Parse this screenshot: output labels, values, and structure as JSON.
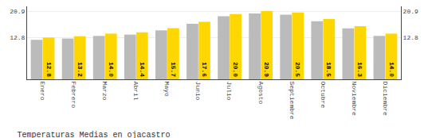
{
  "chart_data": {
    "type": "bar",
    "title": "Temperaturas Medias en ojacastro",
    "categories": [
      "Enero",
      "Febrero",
      "Marzo",
      "Abril",
      "Mayo",
      "Junio",
      "Julio",
      "Agosto",
      "Septiembre",
      "Octubre",
      "Noviembre",
      "Diciembre"
    ],
    "series": [
      {
        "color": "#BBBBBB",
        "values": [
          12.1,
          12.5,
          13.3,
          13.7,
          15.0,
          17.0,
          19.3,
          20.2,
          19.8,
          17.8,
          15.6,
          13.3
        ]
      },
      {
        "color": "#FFD700",
        "values": [
          12.8,
          13.2,
          14.0,
          14.4,
          15.7,
          17.6,
          20.0,
          20.9,
          20.5,
          18.5,
          16.3,
          14.0
        ],
        "data_labels": true,
        "value_labels": [
          "12.8",
          "13.2",
          "14.0",
          "14.4",
          "15.7",
          "17.6",
          "20.0",
          "20.9",
          "20.5",
          "18.5",
          "16.3",
          "14.0"
        ]
      }
    ],
    "ylim": [
      0,
      22.363
    ],
    "yticks": [
      12.8,
      20.9
    ],
    "y2lim": [
      0,
      22.363
    ],
    "y2ticks": [
      12.8,
      20.9
    ],
    "grid": true
  }
}
